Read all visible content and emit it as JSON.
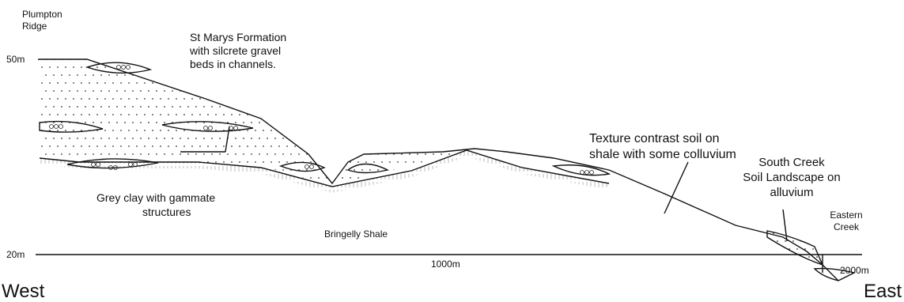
{
  "labels": {
    "plumpton_ridge": [
      "Plumpton",
      "Ridge"
    ],
    "st_marys": [
      "St Marys Formation",
      "with silcrete gravel",
      "beds in channels."
    ],
    "texture_contrast": [
      "Texture contrast soil on",
      "shale with some colluvium"
    ],
    "south_creek": [
      "South Creek",
      "Soil Landscape on",
      "alluvium"
    ],
    "eastern_creek": [
      "Eastern",
      "Creek"
    ],
    "grey_clay": [
      "Grey clay with gammate",
      "structures"
    ],
    "bringelly_shale": "Bringelly Shale"
  },
  "axis": {
    "top_level": "50m",
    "bottom_level": "20m",
    "mid_distance": "1000m",
    "end_distance": "2000m",
    "west": "West",
    "east": "East"
  }
}
